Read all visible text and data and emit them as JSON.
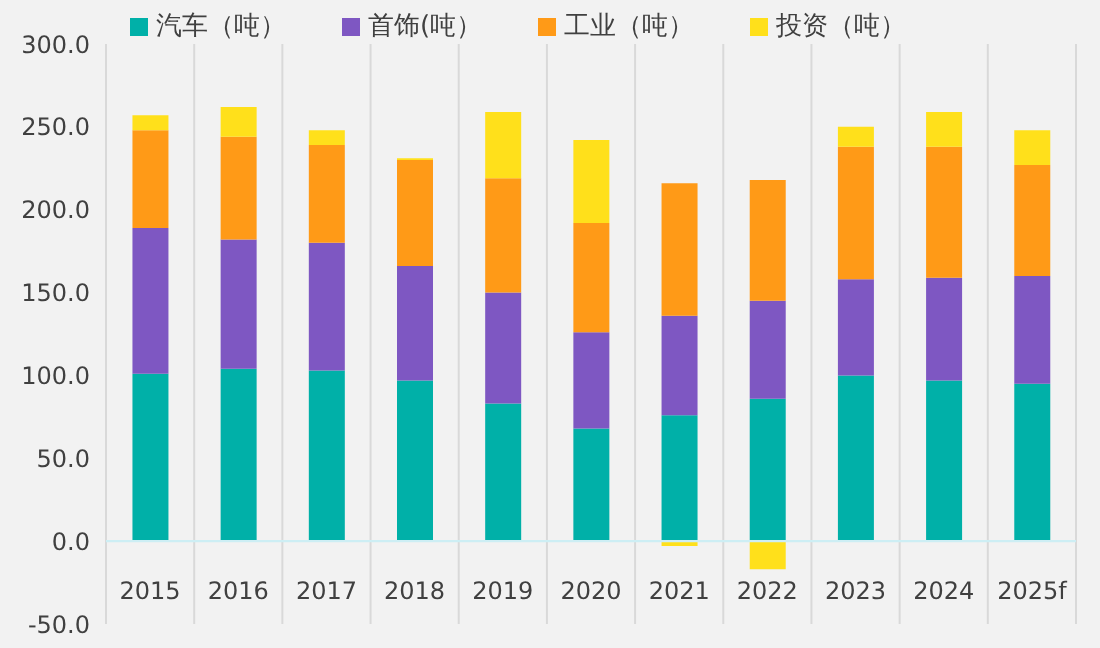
{
  "chart_data": {
    "type": "bar",
    "stacked": true,
    "categories": [
      "2015",
      "2016",
      "2017",
      "2018",
      "2019",
      "2020",
      "2021",
      "2022",
      "2023",
      "2024",
      "2025f"
    ],
    "series": [
      {
        "name": "汽车（吨）",
        "color": "#00b0a8",
        "values": [
          101,
          104,
          103,
          97,
          83,
          68,
          76,
          86,
          100,
          97,
          95
        ]
      },
      {
        "name": "首饰(吨）",
        "color": "#7e57c2",
        "values": [
          88,
          78,
          77,
          69,
          67,
          58,
          60,
          59,
          58,
          62,
          65
        ]
      },
      {
        "name": "工业（吨）",
        "color": "#ff9a17",
        "values": [
          59,
          62,
          59,
          64,
          69,
          66,
          80,
          73,
          80,
          79,
          67
        ]
      },
      {
        "name": "投资（吨）",
        "color": "#ffe01b",
        "values": [
          9,
          18,
          9,
          1,
          40,
          50,
          -3,
          -17,
          12,
          21,
          21
        ]
      }
    ],
    "ylim": [
      -50,
      300
    ],
    "yticks": [
      {
        "value": -50,
        "label": "-50.0"
      },
      {
        "value": 0,
        "label": "0.0"
      },
      {
        "value": 50,
        "label": "50.0"
      },
      {
        "value": 100,
        "label": "100.0"
      },
      {
        "value": 150,
        "label": "150.0"
      },
      {
        "value": 200,
        "label": "200.0"
      },
      {
        "value": 250,
        "label": "250.0"
      },
      {
        "value": 300,
        "label": "300.0"
      }
    ],
    "grid": "x",
    "legend": "top"
  }
}
